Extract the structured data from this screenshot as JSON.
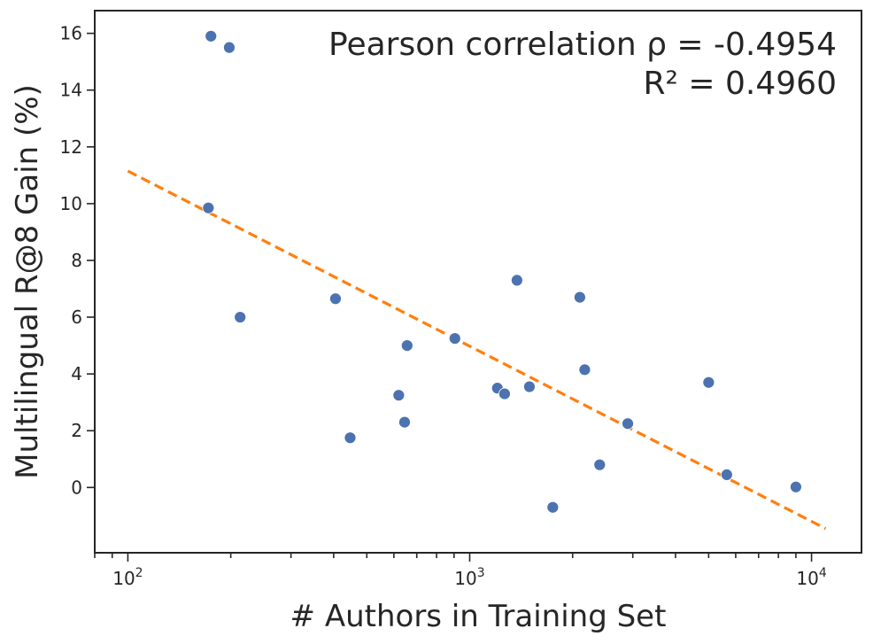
{
  "chart_data": {
    "type": "scatter",
    "title": "",
    "xlabel": "# Authors in Training Set",
    "ylabel": "Multilingual R@8 Gain (%)",
    "xscale": "log",
    "xlim": [
      80,
      14000
    ],
    "ylim": [
      -2.3,
      16.8
    ],
    "x_major_ticks": [
      {
        "value": 100,
        "base": "10",
        "exp": "2"
      },
      {
        "value": 1000,
        "base": "10",
        "exp": "3"
      },
      {
        "value": 10000,
        "base": "10",
        "exp": "4"
      }
    ],
    "y_ticks": [
      0,
      2,
      4,
      6,
      8,
      10,
      12,
      14,
      16
    ],
    "grid": false,
    "point_color": "#4c72b0",
    "fit_color": "#ff7f0e",
    "points": [
      {
        "x": 175,
        "y": 15.9
      },
      {
        "x": 198,
        "y": 15.5
      },
      {
        "x": 172,
        "y": 9.85
      },
      {
        "x": 213,
        "y": 6.0
      },
      {
        "x": 405,
        "y": 6.65
      },
      {
        "x": 447,
        "y": 1.75
      },
      {
        "x": 620,
        "y": 3.25
      },
      {
        "x": 645,
        "y": 2.3
      },
      {
        "x": 656,
        "y": 5.0
      },
      {
        "x": 905,
        "y": 5.25
      },
      {
        "x": 1205,
        "y": 3.5
      },
      {
        "x": 1265,
        "y": 3.3
      },
      {
        "x": 1375,
        "y": 7.3
      },
      {
        "x": 1495,
        "y": 3.55
      },
      {
        "x": 1750,
        "y": -0.7
      },
      {
        "x": 2100,
        "y": 6.7
      },
      {
        "x": 2170,
        "y": 4.15
      },
      {
        "x": 2400,
        "y": 0.8
      },
      {
        "x": 2900,
        "y": 2.25
      },
      {
        "x": 5000,
        "y": 3.7
      },
      {
        "x": 5650,
        "y": 0.45
      },
      {
        "x": 9000,
        "y": 0.02
      }
    ],
    "fit_line": {
      "x": [
        100,
        11000
      ],
      "y": [
        11.15,
        -1.45
      ],
      "style": "dashed"
    },
    "annotations": {
      "line1": "Pearson correlation ρ = -0.4954",
      "line2": "R² = 0.4960"
    },
    "annotation_placement": "top-right"
  }
}
